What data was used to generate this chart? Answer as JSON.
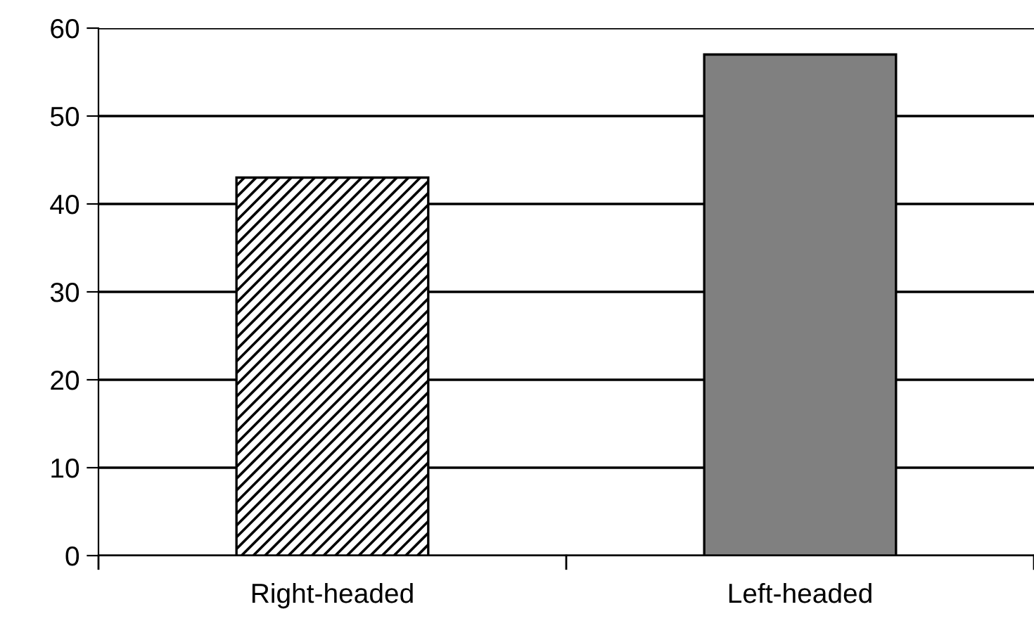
{
  "chart_data": {
    "type": "bar",
    "categories": [
      "Right-headed",
      "Left-headed"
    ],
    "values": [
      43,
      57
    ],
    "colors": [
      "#000000",
      "#808080"
    ],
    "ylim": [
      0,
      60
    ],
    "yticks": [
      0,
      10,
      20,
      30,
      40,
      50,
      60
    ],
    "grid": "y",
    "legend": false
  }
}
